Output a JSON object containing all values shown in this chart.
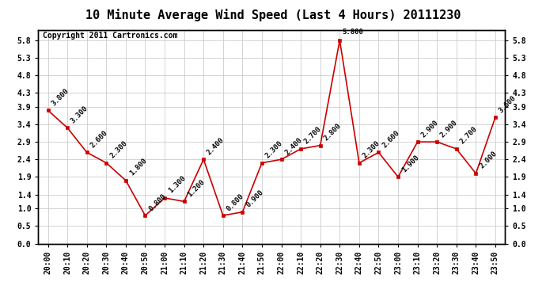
{
  "title": "10 Minute Average Wind Speed (Last 4 Hours) 20111230",
  "copyright": "Copyright 2011 Cartronics.com",
  "times": [
    "20:00",
    "20:10",
    "20:20",
    "20:30",
    "20:40",
    "20:50",
    "21:00",
    "21:10",
    "21:20",
    "21:30",
    "21:40",
    "21:50",
    "22:00",
    "22:10",
    "22:20",
    "22:30",
    "22:40",
    "22:50",
    "23:00",
    "23:10",
    "23:20",
    "23:30",
    "23:40",
    "23:50"
  ],
  "values": [
    3.8,
    3.3,
    2.6,
    2.3,
    1.8,
    0.8,
    1.3,
    1.2,
    2.4,
    0.8,
    0.9,
    2.3,
    2.4,
    2.7,
    2.8,
    5.8,
    2.3,
    2.6,
    1.9,
    2.9,
    2.9,
    2.7,
    2.0,
    3.6
  ],
  "labels": [
    "3.800",
    "3.300",
    "2.600",
    "2.300",
    "1.800",
    "0.800",
    "1.300",
    "1.200",
    "2.400",
    "0.800",
    "0.900",
    "2.300",
    "2.400",
    "2.700",
    "2.800",
    "5.800",
    "2.300",
    "2.600",
    "1.900",
    "2.900",
    "2.900",
    "2.700",
    "2.000",
    "3.600"
  ],
  "line_color": "#cc0000",
  "marker_color": "#cc0000",
  "bg_color": "#ffffff",
  "grid_color": "#cccccc",
  "ylim": [
    0.0,
    6.1
  ],
  "yticks": [
    0.0,
    0.5,
    1.0,
    1.4,
    1.9,
    2.4,
    2.9,
    3.4,
    3.9,
    4.3,
    4.8,
    5.3,
    5.8
  ],
  "ytick_labels": [
    "0.0",
    "0.5",
    "1.0",
    "1.4",
    "1.9",
    "2.4",
    "2.9",
    "3.4",
    "3.9",
    "4.3",
    "4.8",
    "5.3",
    "5.8"
  ],
  "title_fontsize": 11,
  "label_fontsize": 6.5,
  "tick_fontsize": 7,
  "copyright_fontsize": 7
}
